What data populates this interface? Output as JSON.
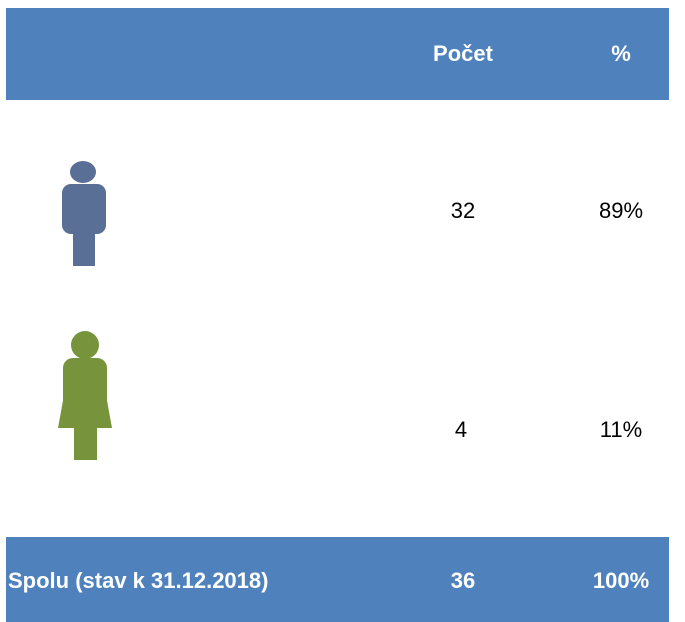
{
  "table": {
    "header": {
      "count": "Počet",
      "percent": "%"
    },
    "rows": [
      {
        "count": "32",
        "percent": "89%"
      },
      {
        "count": "4",
        "percent": "11%"
      }
    ],
    "footer": {
      "label": "Spolu (stav k 31.12.2018)",
      "count": "36",
      "percent": "100%"
    }
  }
}
